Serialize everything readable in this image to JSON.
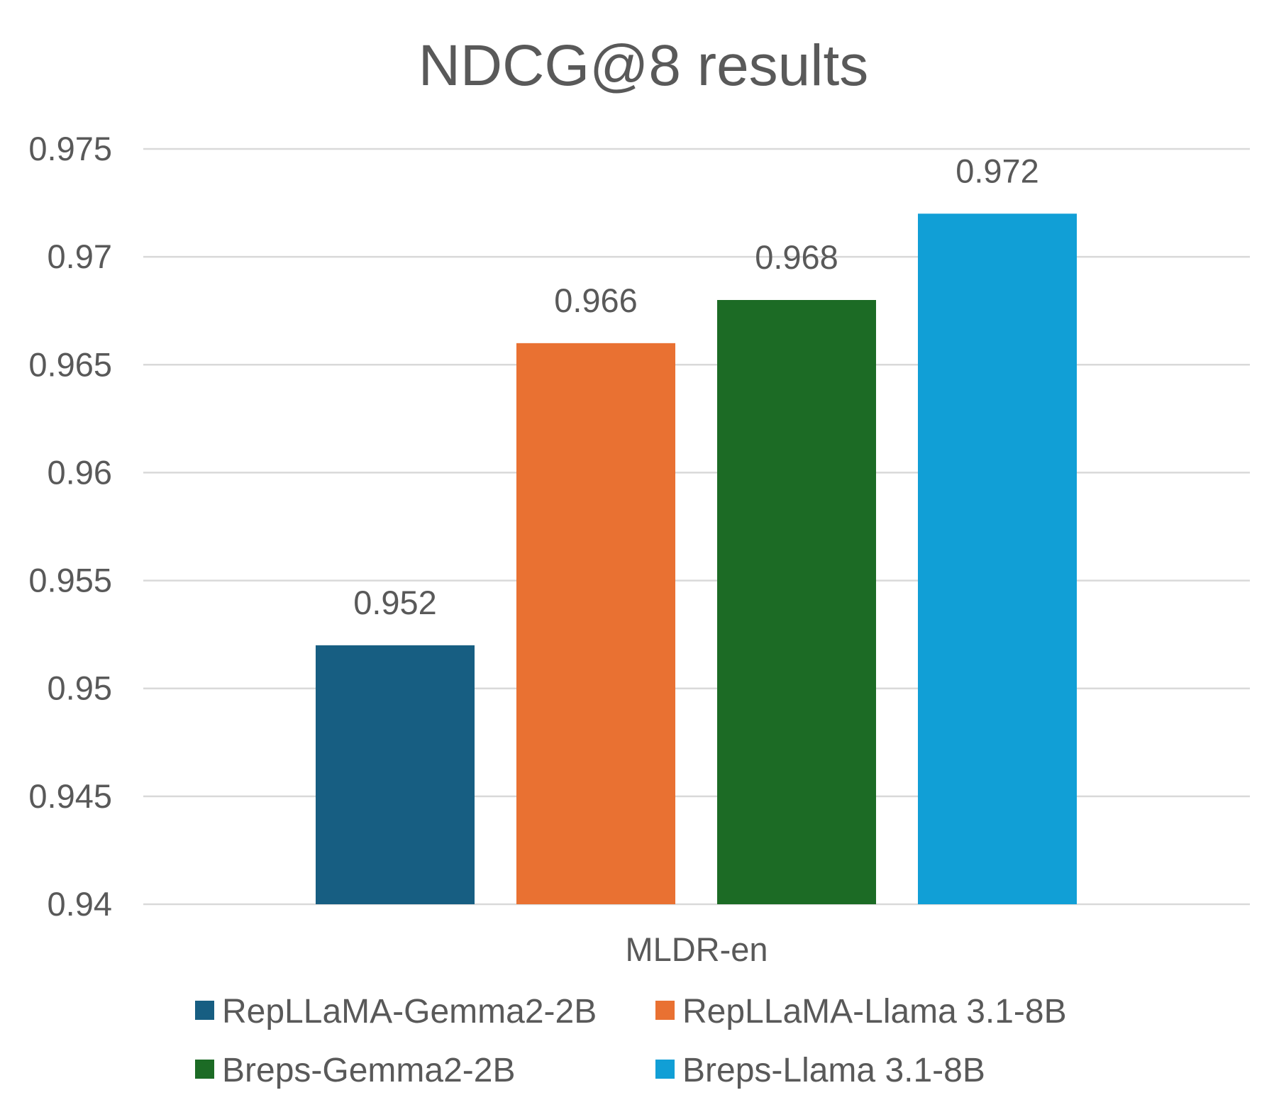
{
  "chart_data": {
    "type": "bar",
    "title": "NDCG@8 results",
    "categories": [
      "MLDR-en"
    ],
    "series": [
      {
        "name": "RepLLaMA-Gemma2-2B",
        "values": [
          0.952
        ],
        "color": "#175e82"
      },
      {
        "name": "RepLLaMA-Llama 3.1-8B",
        "values": [
          0.966
        ],
        "color": "#e97132"
      },
      {
        "name": "Breps-Gemma2-2B",
        "values": [
          0.968
        ],
        "color": "#1c6b25"
      },
      {
        "name": "Breps-Llama 3.1-8B",
        "values": [
          0.972
        ],
        "color": "#119fd6"
      }
    ],
    "data_labels": [
      "0.952",
      "0.966",
      "0.968",
      "0.972"
    ],
    "ylim": [
      0.94,
      0.975
    ],
    "yticks": [
      0.94,
      0.945,
      0.95,
      0.955,
      0.96,
      0.965,
      0.97,
      0.975
    ],
    "ytick_labels": [
      "0.94",
      "0.945",
      "0.95",
      "0.955",
      "0.96",
      "0.965",
      "0.97",
      "0.975"
    ],
    "grid": true,
    "legend_position": "bottom",
    "xlabel": "",
    "ylabel": ""
  }
}
